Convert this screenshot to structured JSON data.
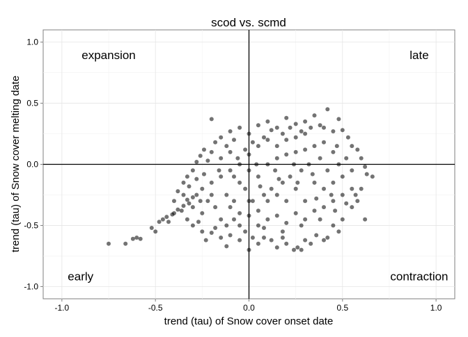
{
  "chart_data": {
    "type": "scatter",
    "title": "scod vs. scmd",
    "xlabel": "trend (tau) of Snow cover onset date",
    "ylabel": "trend (tau) of Snow cover melting date",
    "xlim": [
      -1.1,
      1.1
    ],
    "ylim": [
      -1.1,
      1.1
    ],
    "x_ticks": [
      "-1.0",
      "-0.5",
      "0.0",
      "0.5",
      "1.0"
    ],
    "y_ticks": [
      "-1.0",
      "-0.5",
      "0.0",
      "0.5",
      "1.0"
    ],
    "grid": true,
    "reference_lines": {
      "x": 0,
      "y": 0
    },
    "point_color": "#000000",
    "point_opacity": 0.55,
    "quadrant_labels": [
      {
        "text": "expansion",
        "position": "top-left"
      },
      {
        "text": "late",
        "position": "top-right"
      },
      {
        "text": "early",
        "position": "bottom-left"
      },
      {
        "text": "contraction",
        "position": "bottom-right"
      }
    ],
    "series": [
      {
        "points": [
          [
            -0.75,
            -0.65
          ],
          [
            -0.66,
            -0.65
          ],
          [
            -0.62,
            -0.61
          ],
          [
            -0.6,
            -0.6
          ],
          [
            -0.58,
            -0.61
          ],
          [
            -0.52,
            -0.52
          ],
          [
            -0.5,
            -0.55
          ],
          [
            -0.48,
            -0.47
          ],
          [
            -0.46,
            -0.45
          ],
          [
            -0.44,
            -0.43
          ],
          [
            -0.43,
            -0.47
          ],
          [
            -0.41,
            -0.41
          ],
          [
            -0.4,
            -0.4
          ],
          [
            -0.38,
            -0.37
          ],
          [
            -0.36,
            -0.38
          ],
          [
            -0.35,
            -0.34
          ],
          [
            -0.33,
            -0.29
          ],
          [
            -0.32,
            -0.32
          ],
          [
            -0.3,
            -0.27
          ],
          [
            -0.28,
            -0.25
          ],
          [
            -0.33,
            -0.45
          ],
          [
            -0.3,
            -0.5
          ],
          [
            -0.27,
            -0.47
          ],
          [
            -0.25,
            -0.55
          ],
          [
            -0.23,
            -0.62
          ],
          [
            -0.2,
            -0.56
          ],
          [
            -0.18,
            -0.52
          ],
          [
            -0.15,
            -0.6
          ],
          [
            -0.12,
            -0.67
          ],
          [
            -0.1,
            -0.58
          ],
          [
            -0.4,
            -0.3
          ],
          [
            -0.38,
            -0.22
          ],
          [
            -0.35,
            -0.15
          ],
          [
            -0.33,
            -0.1
          ],
          [
            -0.3,
            -0.05
          ],
          [
            -0.28,
            0.02
          ],
          [
            -0.26,
            0.07
          ],
          [
            -0.24,
            0.12
          ],
          [
            -0.22,
            0.03
          ],
          [
            -0.2,
            0.1
          ],
          [
            -0.18,
            0.18
          ],
          [
            -0.2,
            0.37
          ],
          [
            -0.15,
            0.22
          ],
          [
            -0.12,
            0.15
          ],
          [
            -0.1,
            0.27
          ],
          [
            -0.08,
            0.2
          ],
          [
            -0.05,
            0.3
          ],
          [
            -0.02,
            0.12
          ],
          [
            0.0,
            0.25
          ],
          [
            0.02,
            0.18
          ],
          [
            0.05,
            0.32
          ],
          [
            0.08,
            0.22
          ],
          [
            0.1,
            0.35
          ],
          [
            0.12,
            0.28
          ],
          [
            0.15,
            0.3
          ],
          [
            0.18,
            0.25
          ],
          [
            0.2,
            0.38
          ],
          [
            0.22,
            0.3
          ],
          [
            0.25,
            0.33
          ],
          [
            0.28,
            0.27
          ],
          [
            0.3,
            0.35
          ],
          [
            0.33,
            0.3
          ],
          [
            0.35,
            0.4
          ],
          [
            0.38,
            0.32
          ],
          [
            0.42,
            0.45
          ],
          [
            0.4,
            0.3
          ],
          [
            0.45,
            0.27
          ],
          [
            0.48,
            0.37
          ],
          [
            0.5,
            0.28
          ],
          [
            0.53,
            0.22
          ],
          [
            0.55,
            0.15
          ],
          [
            0.58,
            0.12
          ],
          [
            0.6,
            0.05
          ],
          [
            0.62,
            -0.02
          ],
          [
            0.63,
            -0.08
          ],
          [
            0.66,
            -0.1
          ],
          [
            0.6,
            -0.2
          ],
          [
            0.58,
            -0.3
          ],
          [
            0.55,
            -0.35
          ],
          [
            0.62,
            -0.45
          ],
          [
            0.5,
            -0.45
          ],
          [
            0.48,
            -0.55
          ],
          [
            0.45,
            -0.5
          ],
          [
            0.42,
            -0.6
          ],
          [
            0.4,
            -0.62
          ],
          [
            0.36,
            -0.58
          ],
          [
            0.33,
            -0.65
          ],
          [
            0.3,
            -0.62
          ],
          [
            0.28,
            -0.7
          ],
          [
            0.26,
            -0.68
          ],
          [
            0.24,
            -0.7
          ],
          [
            0.2,
            -0.65
          ],
          [
            0.18,
            -0.6
          ],
          [
            0.15,
            -0.68
          ],
          [
            0.12,
            -0.62
          ],
          [
            0.08,
            -0.6
          ],
          [
            0.05,
            -0.65
          ],
          [
            0.02,
            -0.6
          ],
          [
            0.0,
            -0.7
          ],
          [
            -0.05,
            -0.62
          ],
          [
            -0.12,
            -0.5
          ],
          [
            -0.08,
            -0.45
          ],
          [
            -0.05,
            -0.4
          ],
          [
            0.0,
            -0.42
          ],
          [
            0.05,
            -0.38
          ],
          [
            0.1,
            -0.45
          ],
          [
            0.15,
            -0.42
          ],
          [
            0.2,
            -0.48
          ],
          [
            0.25,
            -0.4
          ],
          [
            0.3,
            -0.45
          ],
          [
            0.35,
            -0.38
          ],
          [
            0.4,
            -0.35
          ],
          [
            0.45,
            -0.3
          ],
          [
            0.5,
            -0.25
          ],
          [
            0.55,
            -0.2
          ],
          [
            -0.25,
            -0.2
          ],
          [
            -0.22,
            -0.3
          ],
          [
            -0.2,
            -0.15
          ],
          [
            -0.18,
            -0.35
          ],
          [
            -0.15,
            -0.1
          ],
          [
            -0.12,
            -0.25
          ],
          [
            -0.1,
            -0.05
          ],
          [
            -0.08,
            -0.3
          ],
          [
            -0.05,
            -0.15
          ],
          [
            -0.02,
            -0.2
          ],
          [
            0.0,
            -0.05
          ],
          [
            0.02,
            -0.3
          ],
          [
            0.05,
            -0.1
          ],
          [
            0.08,
            -0.25
          ],
          [
            0.1,
            0.0
          ],
          [
            0.12,
            -0.2
          ],
          [
            0.15,
            0.05
          ],
          [
            0.18,
            -0.15
          ],
          [
            0.2,
            0.08
          ],
          [
            0.22,
            -0.1
          ],
          [
            0.25,
            0.1
          ],
          [
            0.28,
            -0.05
          ],
          [
            0.3,
            0.12
          ],
          [
            0.32,
            0.0
          ],
          [
            0.35,
            0.15
          ],
          [
            0.38,
            0.05
          ],
          [
            0.4,
            0.18
          ],
          [
            0.42,
            -0.05
          ],
          [
            0.45,
            0.1
          ],
          [
            0.48,
            0.0
          ],
          [
            -0.15,
            0.05
          ],
          [
            -0.1,
            0.1
          ],
          [
            -0.05,
            0.0
          ],
          [
            0.0,
            0.08
          ],
          [
            0.05,
            0.15
          ],
          [
            0.1,
            0.2
          ],
          [
            0.15,
            0.15
          ],
          [
            0.2,
            0.2
          ],
          [
            0.25,
            0.22
          ],
          [
            0.3,
            0.25
          ],
          [
            -0.3,
            -0.35
          ],
          [
            -0.25,
            -0.4
          ],
          [
            -0.2,
            -0.25
          ],
          [
            -0.15,
            -0.45
          ],
          [
            -0.1,
            -0.35
          ],
          [
            -0.05,
            -0.5
          ],
          [
            0.0,
            -0.3
          ],
          [
            0.05,
            -0.5
          ],
          [
            0.1,
            -0.3
          ],
          [
            0.15,
            -0.25
          ],
          [
            0.2,
            -0.3
          ],
          [
            0.25,
            -0.2
          ],
          [
            0.3,
            -0.3
          ],
          [
            0.35,
            -0.15
          ],
          [
            0.4,
            -0.2
          ],
          [
            0.45,
            -0.15
          ],
          [
            0.5,
            -0.1
          ],
          [
            0.55,
            -0.05
          ],
          [
            0.52,
            0.05
          ],
          [
            0.47,
            0.15
          ],
          [
            -0.35,
            -0.25
          ],
          [
            -0.32,
            -0.18
          ],
          [
            -0.28,
            -0.12
          ],
          [
            -0.26,
            -0.3
          ],
          [
            -0.24,
            -0.08
          ],
          [
            -0.16,
            -0.05
          ],
          [
            -0.06,
            0.05
          ],
          [
            0.04,
            0.0
          ],
          [
            0.14,
            -0.05
          ],
          [
            0.24,
            0.0
          ],
          [
            0.34,
            -0.08
          ],
          [
            0.44,
            -0.25
          ],
          [
            0.38,
            -0.45
          ],
          [
            0.28,
            -0.5
          ],
          [
            0.18,
            -0.55
          ],
          [
            0.08,
            -0.52
          ],
          [
            -0.02,
            -0.55
          ],
          [
            -0.08,
            -0.1
          ],
          [
            0.06,
            -0.18
          ],
          [
            0.16,
            -0.12
          ],
          [
            0.26,
            -0.15
          ],
          [
            0.36,
            -0.28
          ],
          [
            0.46,
            -0.38
          ],
          [
            0.52,
            -0.32
          ],
          [
            0.57,
            -0.25
          ]
        ]
      }
    ]
  }
}
